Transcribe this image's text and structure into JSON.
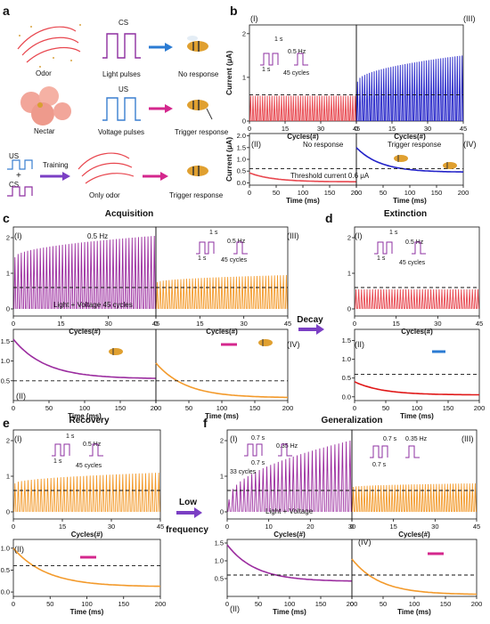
{
  "panels": {
    "a": "a",
    "b": "b",
    "c": "c",
    "d": "d",
    "e": "e",
    "f": "f"
  },
  "schema_a": {
    "cs": "CS",
    "light_pulses": "Light pulses",
    "no_response": "No response",
    "odor": "Odor",
    "us": "US",
    "voltage_pulses": "Voltage pulses",
    "trigger_response": "Trigger response",
    "nectar": "Nectar",
    "training": "Training",
    "only_odor": "Only odor",
    "trigger_response_2": "Trigger response",
    "us_small": "US",
    "cs_small": "CS",
    "plus": "+"
  },
  "titles": {
    "acquisition": "Acquisition",
    "extinction": "Extinction",
    "recovery": "Recovery",
    "generalization": "Generalization",
    "decay": "Decay",
    "low": "Low",
    "frequency": "frequency"
  },
  "common": {
    "current_label": "Current (μA)",
    "cycles_label": "Cycles(#)",
    "time_label": "Time (ms)",
    "colors": {
      "red": "#e8474f",
      "blue": "#2222c8",
      "purple": "#9b2c9f",
      "orange": "#f39a2b",
      "arrow_blue": "#2b7bd3",
      "arrow_magenta": "#d4278d",
      "arrow_violet": "#7b3fc4"
    }
  },
  "sub": {
    "b1": "(I)",
    "b3": "(III)",
    "b2": "(II)",
    "b4": "(IV)",
    "c1": "(I)",
    "c3": "(III)",
    "c2": "(II)",
    "c4": "(IV)",
    "d1": "(I)",
    "d2": "(II)",
    "e1": "(I)",
    "e2": "(II)",
    "f1": "(I)",
    "f3": "(III)",
    "f2": "(II)",
    "f4": "(IV)"
  },
  "annotations": {
    "b1_1s_top": "1 s",
    "b1_05hz": "0.5 Hz",
    "b1_1s_bot": "1 s",
    "b1_cycles": "45 cycles",
    "b2_text": "No response",
    "b2_threshold": "Threshold current  0.6 μA",
    "b4_text": "Trigger response",
    "c1_hz": "0.5 Hz",
    "c1_bottom": "Light + Voltage   45 cycles",
    "c3_1s_top": "1 s",
    "c3_hz": "0.5 Hz",
    "c3_1s_bot": "1 s",
    "c3_cycles": "45 cycles",
    "d1_1s_top": "1 s",
    "d1_hz": "0.5 Hz",
    "d1_1s_bot": "1 s",
    "d1_cycles": "45 cycles",
    "e1_1s_top": "1 s",
    "e1_hz": "0.5 Hz",
    "e1_1s_bot": "1 s",
    "e1_cycles": "45 cycles",
    "f1_07_top": "0.7 s",
    "f1_hz": "0.35 Hz",
    "f1_07_bot": "0.7 s",
    "f1_cycles": "33 cycles",
    "f1_bottom": "Light + Voltage",
    "f3_07_top": "0.7 s",
    "f3_hz": "0.35 Hz",
    "f3_07_bot": "0.7 s"
  },
  "chart_data": [
    {
      "id": "b-I",
      "type": "line",
      "xlabel": "Cycles(#)",
      "ylabel": "Current (μA)",
      "xlim": [
        0,
        45
      ],
      "ylim": [
        0,
        2.2
      ],
      "xticks": [
        0,
        15,
        30,
        45
      ],
      "yticks": [
        0,
        1,
        2
      ],
      "series": [
        {
          "color": "#e8474f",
          "pulses": 45,
          "peak_start": 0.58,
          "peak_end": 0.58,
          "base": 0.0
        }
      ],
      "threshold": 0.6
    },
    {
      "id": "b-III",
      "type": "line",
      "xlabel": "Cycles(#)",
      "ylabel": "",
      "xlim": [
        0,
        45
      ],
      "ylim": [
        0,
        2.2
      ],
      "xticks": [
        0,
        15,
        30,
        45
      ],
      "yticks": [],
      "series": [
        {
          "color": "#2222c8",
          "pulses": 45,
          "peak_start": 0.9,
          "peak_end": 1.5,
          "base": 0.0
        }
      ],
      "threshold": 0.6
    },
    {
      "id": "b-II",
      "type": "line",
      "xlabel": "Time (ms)",
      "ylabel": "Current (μA)",
      "xlim": [
        0,
        200
      ],
      "ylim": [
        -0.1,
        2.1
      ],
      "xticks": [
        0,
        50,
        100,
        150,
        200
      ],
      "yticks": [
        0.0,
        0.5,
        1.0,
        1.5,
        2.0
      ],
      "series": [
        {
          "color": "#e8474f",
          "start": 0.42,
          "end": 0.04
        }
      ],
      "threshold": 0.6
    },
    {
      "id": "b-IV",
      "type": "line",
      "xlabel": "Time (ms)",
      "ylabel": "",
      "xlim": [
        0,
        200
      ],
      "ylim": [
        -0.1,
        2.1
      ],
      "xticks": [
        0,
        50,
        100,
        150,
        200
      ],
      "yticks": [],
      "series": [
        {
          "color": "#2222c8",
          "start": 1.5,
          "end": 0.45
        }
      ],
      "threshold": 0.6
    },
    {
      "id": "c-I",
      "type": "line",
      "xlabel": "Cycles(#)",
      "ylabel": "Current (μA)",
      "xlim": [
        0,
        45
      ],
      "ylim": [
        -0.2,
        2.3
      ],
      "xticks": [
        0,
        15,
        30,
        45
      ],
      "yticks": [
        0,
        1,
        2
      ],
      "series": [
        {
          "color": "#9b2c9f",
          "pulses": 45,
          "peak_start": 1.45,
          "peak_end": 2.05,
          "base": 0.0
        }
      ],
      "threshold": 0.6
    },
    {
      "id": "c-III",
      "type": "line",
      "xlabel": "Cycles(#)",
      "ylabel": "",
      "xlim": [
        0,
        45
      ],
      "ylim": [
        -0.2,
        2.3
      ],
      "xticks": [
        0,
        15,
        30,
        45
      ],
      "yticks": [],
      "series": [
        {
          "color": "#f39a2b",
          "pulses": 45,
          "peak_start": 0.75,
          "peak_end": 0.95,
          "base": 0.0
        }
      ],
      "threshold": 0.6
    },
    {
      "id": "c-II",
      "type": "line",
      "xlabel": "Time (ms)",
      "ylabel": "",
      "xlim": [
        0,
        200
      ],
      "ylim": [
        0,
        1.8
      ],
      "xticks": [
        0,
        50,
        100,
        150,
        200
      ],
      "yticks": [
        0.5,
        1.0,
        1.5
      ],
      "series": [
        {
          "color": "#9b2c9f",
          "start": 1.55,
          "end": 0.55
        }
      ],
      "threshold": 0.5
    },
    {
      "id": "c-IV",
      "type": "line",
      "xlabel": "Time (ms)",
      "ylabel": "",
      "xlim": [
        0,
        200
      ],
      "ylim": [
        0,
        1.8
      ],
      "xticks": [
        0,
        50,
        100,
        150,
        200
      ],
      "yticks": [],
      "series": [
        {
          "color": "#f39a2b",
          "start": 0.95,
          "end": 0.07
        }
      ],
      "threshold": 0.5
    },
    {
      "id": "d-I",
      "type": "line",
      "xlabel": "Cycles(#)",
      "ylabel": "",
      "xlim": [
        0,
        45
      ],
      "ylim": [
        -0.2,
        2.3
      ],
      "xticks": [
        0,
        15,
        30,
        45
      ],
      "yticks": [
        0,
        1,
        2
      ],
      "series": [
        {
          "color": "#e8474f",
          "pulses": 45,
          "peak_start": 0.55,
          "peak_end": 0.55,
          "base": 0.0
        }
      ],
      "threshold": 0.6
    },
    {
      "id": "d-II",
      "type": "line",
      "xlabel": "Time (ms)",
      "ylabel": "",
      "xlim": [
        0,
        200
      ],
      "ylim": [
        -0.1,
        1.8
      ],
      "xticks": [
        0,
        50,
        100,
        150,
        200
      ],
      "yticks": [
        0.0,
        0.5,
        1.0,
        1.5
      ],
      "series": [
        {
          "color": "#e01818",
          "start": 0.4,
          "end": 0.05
        }
      ],
      "threshold": 0.6
    },
    {
      "id": "e-I",
      "type": "line",
      "xlabel": "Cycles(#)",
      "ylabel": "Current (μA)",
      "xlim": [
        0,
        45
      ],
      "ylim": [
        -0.2,
        2.3
      ],
      "xticks": [
        0,
        15,
        30,
        45
      ],
      "yticks": [
        0,
        1,
        2
      ],
      "series": [
        {
          "color": "#f39a2b",
          "pulses": 45,
          "peak_start": 0.8,
          "peak_end": 1.1,
          "base": 0.0
        }
      ],
      "threshold": 0.6
    },
    {
      "id": "e-II",
      "type": "line",
      "xlabel": "Time (ms)",
      "ylabel": "",
      "xlim": [
        0,
        200
      ],
      "ylim": [
        -0.1,
        1.2
      ],
      "xticks": [
        0,
        50,
        100,
        150,
        200
      ],
      "yticks": [
        0.0,
        0.5,
        1.0
      ],
      "series": [
        {
          "color": "#f39a2b",
          "start": 1.0,
          "end": 0.12
        }
      ],
      "threshold": 0.6
    },
    {
      "id": "f-I",
      "type": "line",
      "xlabel": "Cycles(#)",
      "ylabel": "",
      "xlim": [
        0,
        30
      ],
      "ylim": [
        -0.2,
        2.3
      ],
      "xticks": [
        0,
        10,
        20,
        30
      ],
      "yticks": [
        0,
        1,
        2
      ],
      "series": [
        {
          "color": "#9b2c9f",
          "pulses": 33,
          "peak_start": 0.35,
          "peak_end": 2.0,
          "base": 0.0
        }
      ],
      "threshold": 0.6
    },
    {
      "id": "f-III",
      "type": "line",
      "xlabel": "Cycles(#)",
      "ylabel": "",
      "xlim": [
        0,
        45
      ],
      "ylim": [
        -0.2,
        2.3
      ],
      "xticks": [
        0,
        15,
        30,
        45
      ],
      "yticks": [],
      "series": [
        {
          "color": "#f39a2b",
          "pulses": 45,
          "peak_start": 0.7,
          "peak_end": 0.8,
          "base": 0.0
        }
      ],
      "threshold": 0.6
    },
    {
      "id": "f-II",
      "type": "line",
      "xlabel": "Time (ms)",
      "ylabel": "",
      "xlim": [
        0,
        200
      ],
      "ylim": [
        0,
        1.6
      ],
      "xticks": [
        0,
        50,
        100,
        150,
        200
      ],
      "yticks": [
        0.5,
        1.0,
        1.5
      ],
      "series": [
        {
          "color": "#9b2c9f",
          "start": 1.45,
          "end": 0.42
        }
      ],
      "threshold": 0.6
    },
    {
      "id": "f-IV",
      "type": "line",
      "xlabel": "Time (ms)",
      "ylabel": "",
      "xlim": [
        0,
        200
      ],
      "ylim": [
        0,
        1.6
      ],
      "xticks": [
        0,
        50,
        100,
        150,
        200
      ],
      "yticks": [],
      "series": [
        {
          "color": "#f39a2b",
          "start": 1.05,
          "end": 0.05
        }
      ],
      "threshold": 0.6
    }
  ]
}
